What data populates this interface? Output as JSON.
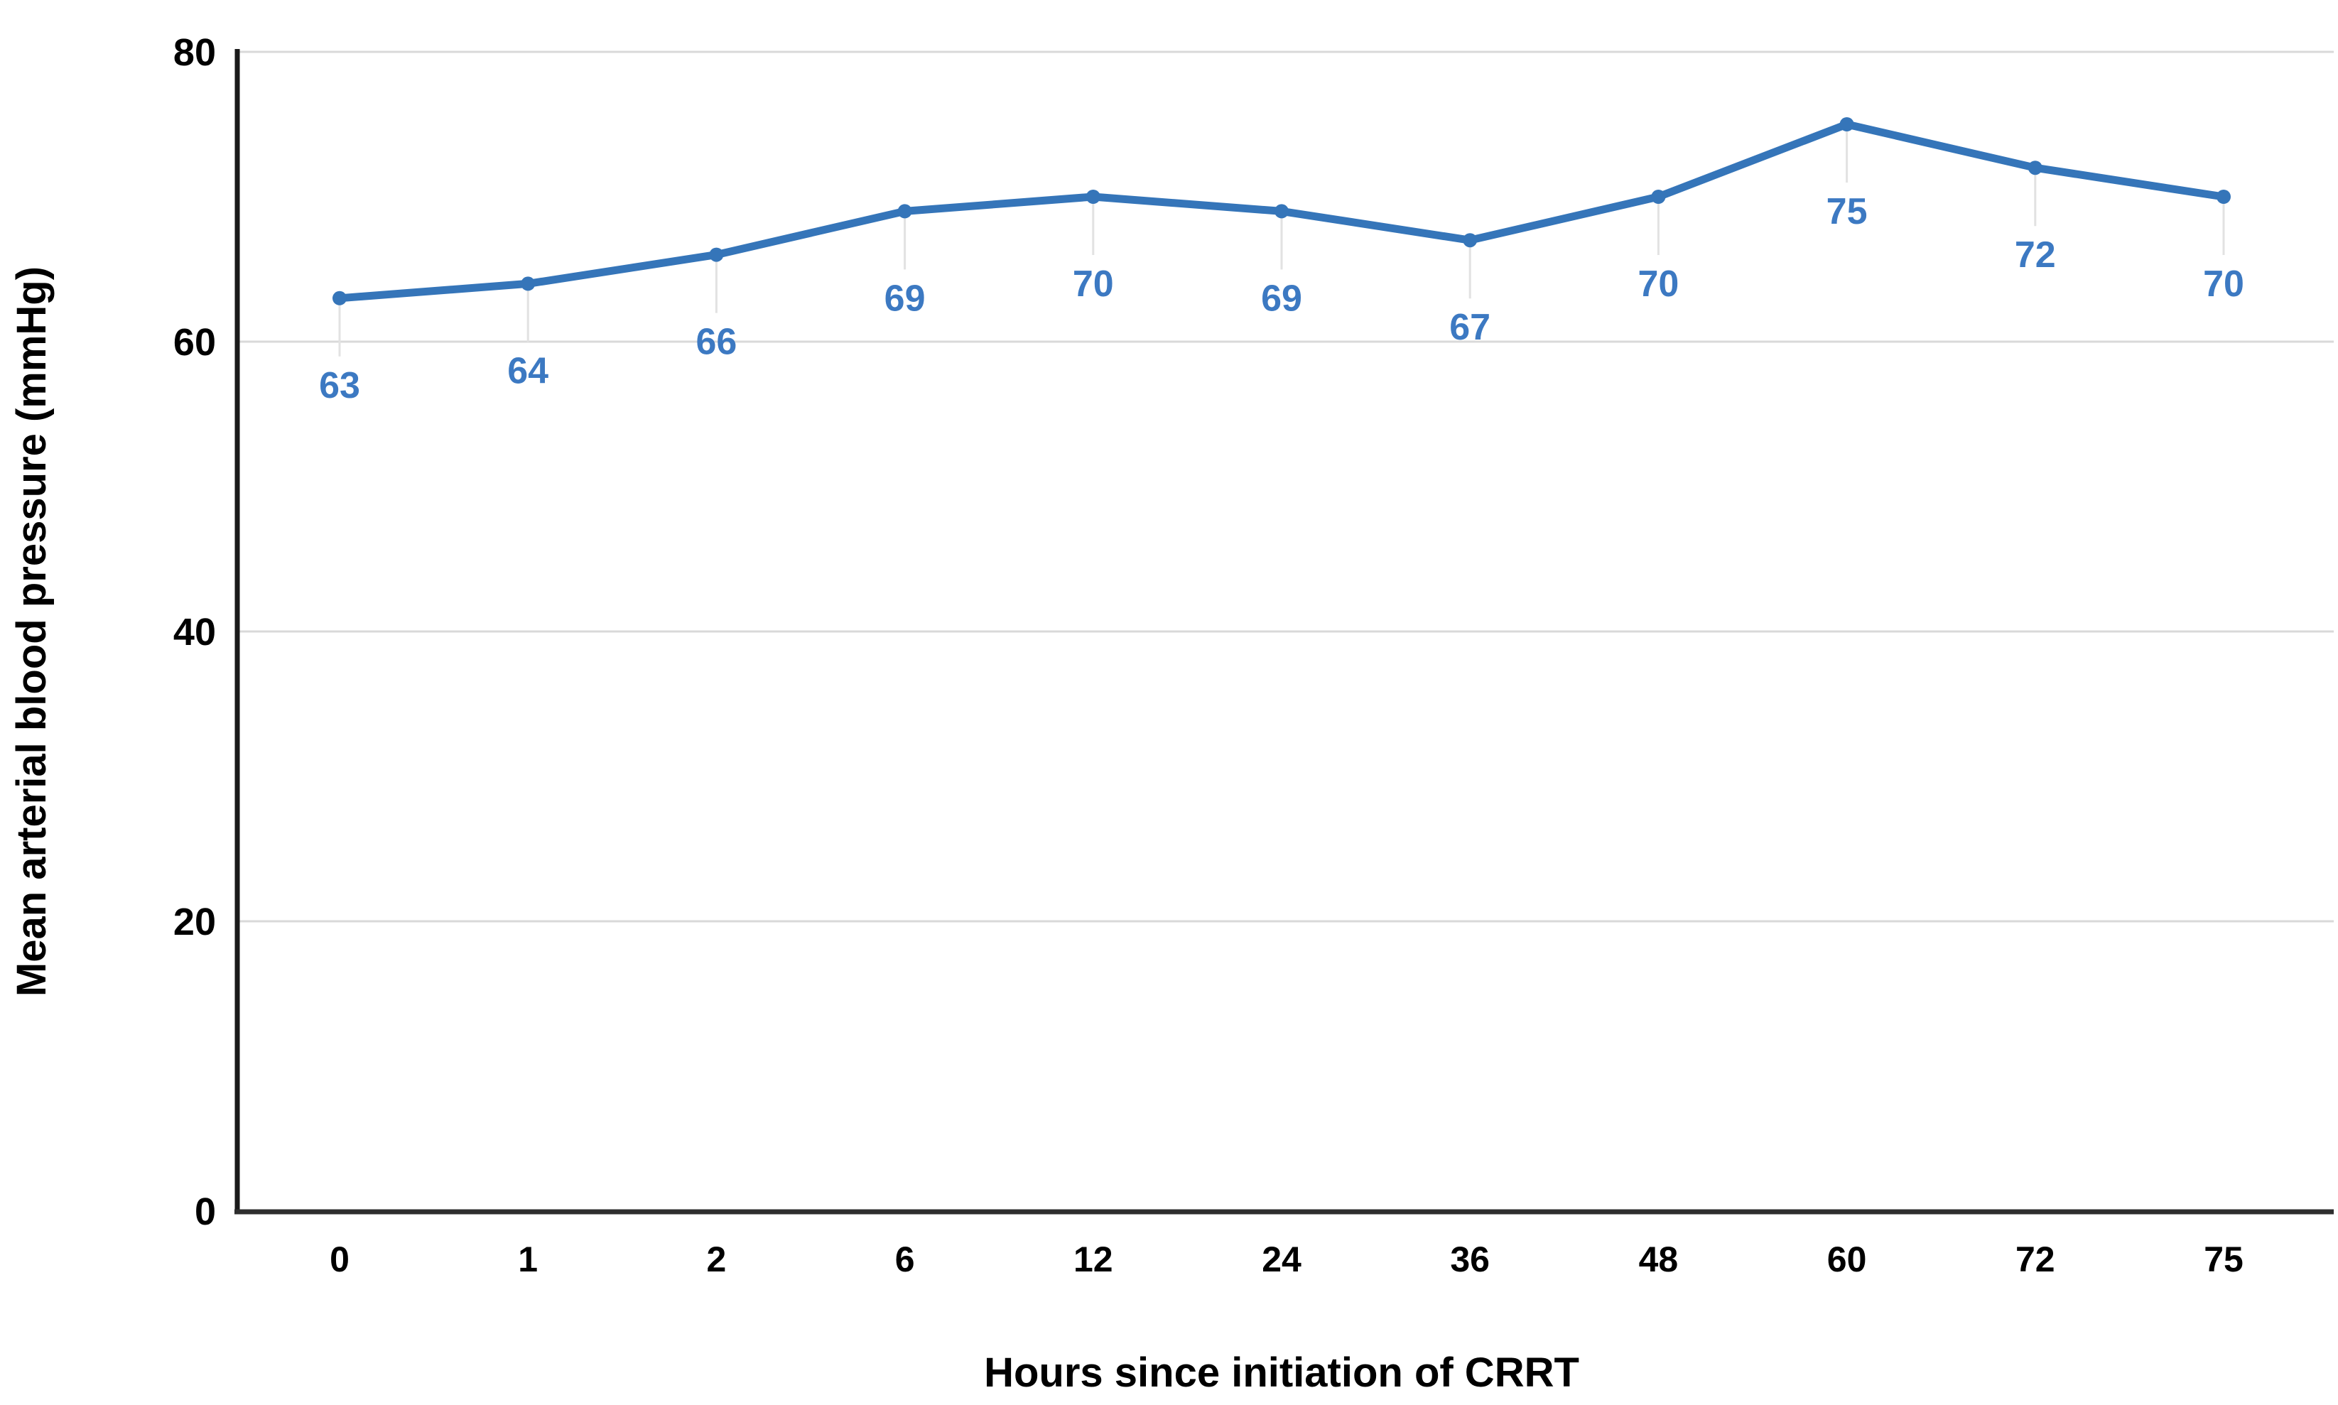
{
  "chart_data": {
    "type": "line",
    "title": "",
    "xlabel": "Hours since initiation of CRRT",
    "ylabel": "Mean arterial blood pressure (mmHg)",
    "categories": [
      "0",
      "1",
      "2",
      "6",
      "12",
      "24",
      "36",
      "48",
      "60",
      "72",
      "75"
    ],
    "series": [
      {
        "name": "Mean arterial blood pressure",
        "values": [
          63,
          64,
          66,
          69,
          70,
          69,
          67,
          70,
          75,
          72,
          70
        ]
      }
    ],
    "data_labels": [
      "63",
      "64",
      "66",
      "69",
      "70",
      "69",
      "67",
      "70",
      "75",
      "72",
      "70"
    ],
    "ylim": [
      0,
      80
    ],
    "yticks": [
      0,
      20,
      40,
      60,
      80
    ],
    "grid": true,
    "legend": false,
    "colors": {
      "line": "#3575B9",
      "marker": "#3575B9",
      "data_label": "#3C79C2",
      "axis": "#2E2E2E",
      "gridline": "#D9D9D9",
      "leader_line": "#E2E2E2",
      "tick_label": "#000000",
      "background": "#FFFFFF"
    }
  }
}
